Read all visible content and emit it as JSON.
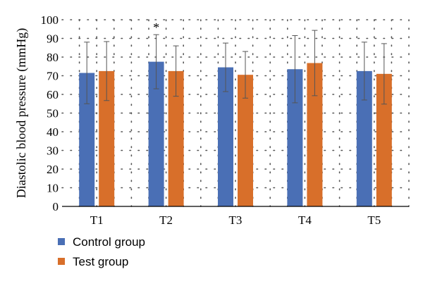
{
  "chart_data": {
    "type": "bar",
    "categories": [
      "T1",
      "T2",
      "T3",
      "T4",
      "T5"
    ],
    "series": [
      {
        "name": "Control group",
        "color": "#4A6FB5",
        "values": [
          71.5,
          77.5,
          74.5,
          73.5,
          72.5
        ],
        "error": [
          16.5,
          14.5,
          13.0,
          18.0,
          15.5
        ]
      },
      {
        "name": "Test group",
        "color": "#D86F2A",
        "values": [
          72.5,
          72.5,
          70.5,
          76.8,
          71.0
        ],
        "error": [
          15.8,
          13.5,
          12.5,
          17.5,
          16.2
        ]
      }
    ],
    "title": "",
    "xlabel": "",
    "ylabel": "Diastolic blood pressure (mmHg)",
    "ylim": [
      0,
      100
    ],
    "yticks": [
      "0",
      "10",
      "20",
      "30",
      "40",
      "50",
      "60",
      "70",
      "80",
      "90",
      "100"
    ],
    "grid": "dotted vertical and horizontal",
    "legend_position": "bottom-left",
    "annotations": [
      {
        "category": "T2",
        "series": "Control group",
        "text": "*"
      }
    ]
  }
}
